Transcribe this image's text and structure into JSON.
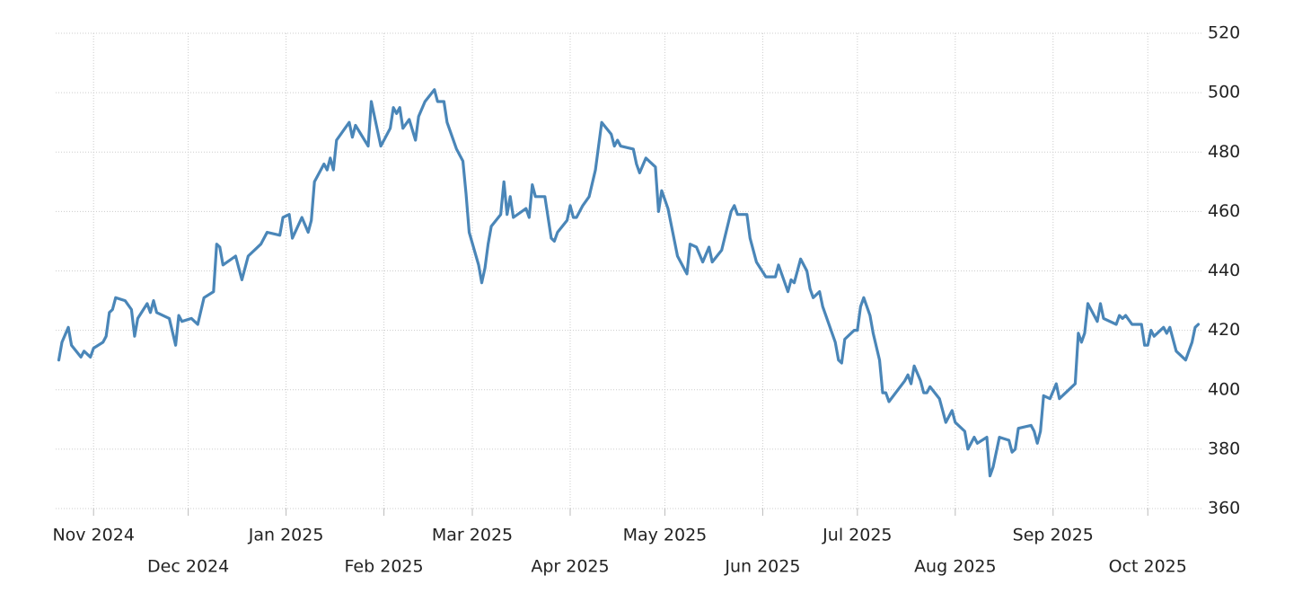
{
  "chart_data": {
    "type": "line",
    "x": [
      0,
      1,
      3,
      4,
      7,
      8,
      10,
      11,
      14,
      15,
      16,
      17,
      18,
      21,
      23,
      24,
      25,
      28,
      29,
      30,
      31,
      35,
      37,
      38,
      39,
      42,
      44,
      46,
      49,
      50,
      51,
      52,
      56,
      58,
      60,
      64,
      66,
      70,
      71,
      73,
      74,
      77,
      79,
      80,
      81,
      84,
      85,
      86,
      87,
      88,
      92,
      93,
      94,
      98,
      99,
      102,
      105,
      106,
      107,
      108,
      109,
      111,
      113,
      114,
      116,
      119,
      120,
      122,
      123,
      126,
      128,
      129,
      130,
      133,
      134,
      135,
      136,
      137,
      140,
      141,
      142,
      143,
      144,
      148,
      149,
      150,
      151,
      154,
      156,
      157,
      158,
      161,
      162,
      163,
      164,
      166,
      168,
      170,
      172,
      175,
      176,
      177,
      178,
      182,
      183,
      184,
      186,
      189,
      190,
      191,
      193,
      196,
      198,
      199,
      200,
      202,
      204,
      206,
      207,
      210,
      213,
      214,
      215,
      218,
      219,
      221,
      224,
      227,
      228,
      231,
      232,
      233,
      235,
      237,
      238,
      239,
      241,
      242,
      246,
      247,
      248,
      249,
      252,
      253,
      254,
      255,
      257,
      258,
      260,
      261,
      262,
      263,
      268,
      269,
      270,
      271,
      273,
      274,
      275,
      276,
      279,
      280,
      281,
      283,
      284,
      287,
      288,
      290,
      291,
      294,
      295,
      296,
      298,
      301,
      302,
      303,
      304,
      308,
      309,
      310,
      311,
      312,
      314,
      316,
      317,
      319,
      322,
      323,
      324,
      325,
      326,
      329,
      330,
      331,
      335,
      336,
      337,
      338,
      340,
      343,
      344,
      345,
      346,
      347,
      350,
      351,
      352,
      354,
      357,
      359,
      360,
      361
    ],
    "series": [
      {
        "color": "#4a86b8",
        "values": [
          410,
          416,
          421,
          415,
          411,
          413,
          411,
          414,
          416,
          418,
          426,
          427,
          431,
          430,
          427,
          418,
          424,
          429,
          426,
          430,
          426,
          424,
          415,
          425,
          423,
          424,
          422,
          431,
          433,
          449,
          448,
          442,
          445,
          437,
          445,
          449,
          453,
          452,
          458,
          459,
          451,
          458,
          453,
          457,
          470,
          476,
          474,
          478,
          474,
          484,
          490,
          485,
          489,
          482,
          497,
          482,
          488,
          495,
          493,
          495,
          488,
          491,
          484,
          492,
          497,
          501,
          497,
          497,
          490,
          481,
          477,
          466,
          453,
          442,
          436,
          441,
          449,
          455,
          459,
          470,
          459,
          465,
          458,
          461,
          458,
          469,
          465,
          465,
          451,
          450,
          453,
          457,
          462,
          458,
          458,
          462,
          465,
          474,
          490,
          486,
          482,
          484,
          482,
          481,
          476,
          473,
          478,
          475,
          460,
          467,
          461,
          445,
          441,
          439,
          449,
          448,
          443,
          448,
          443,
          447,
          460,
          462,
          459,
          459,
          451,
          443,
          438,
          438,
          442,
          433,
          437,
          436,
          444,
          440,
          434,
          431,
          433,
          428,
          416,
          410,
          409,
          417,
          420,
          420,
          428,
          431,
          425,
          419,
          410,
          399,
          399,
          396,
          403,
          405,
          402,
          408,
          403,
          399,
          399,
          401,
          397,
          393,
          389,
          393,
          389,
          386,
          380,
          384,
          382,
          384,
          371,
          374,
          384,
          383,
          379,
          380,
          387,
          388,
          386,
          382,
          386,
          398,
          397,
          402,
          397,
          399,
          402,
          419,
          416,
          419,
          429,
          423,
          429,
          424,
          422,
          425,
          424,
          425,
          422,
          422,
          415,
          415,
          420,
          418,
          421,
          419,
          421,
          413,
          410,
          416,
          421,
          422
        ]
      }
    ],
    "xlim": [
      -1,
      362
    ],
    "xticks": [
      {
        "value": 11,
        "label": "Nov 2024"
      },
      {
        "value": 41,
        "label": "Dec 2024"
      },
      {
        "value": 72,
        "label": "Jan 2025"
      },
      {
        "value": 103,
        "label": "Feb 2025"
      },
      {
        "value": 131,
        "label": "Mar 2025"
      },
      {
        "value": 162,
        "label": "Apr 2025"
      },
      {
        "value": 192,
        "label": "May 2025"
      },
      {
        "value": 223,
        "label": "Jun 2025"
      },
      {
        "value": 253,
        "label": "Jul 2025"
      },
      {
        "value": 284,
        "label": "Aug 2025"
      },
      {
        "value": 315,
        "label": "Sep 2025"
      },
      {
        "value": 345,
        "label": "Oct 2025"
      }
    ],
    "ylim": [
      360,
      520
    ],
    "yticks": [
      360,
      380,
      400,
      420,
      440,
      460,
      480,
      500,
      520
    ],
    "grid": true
  }
}
